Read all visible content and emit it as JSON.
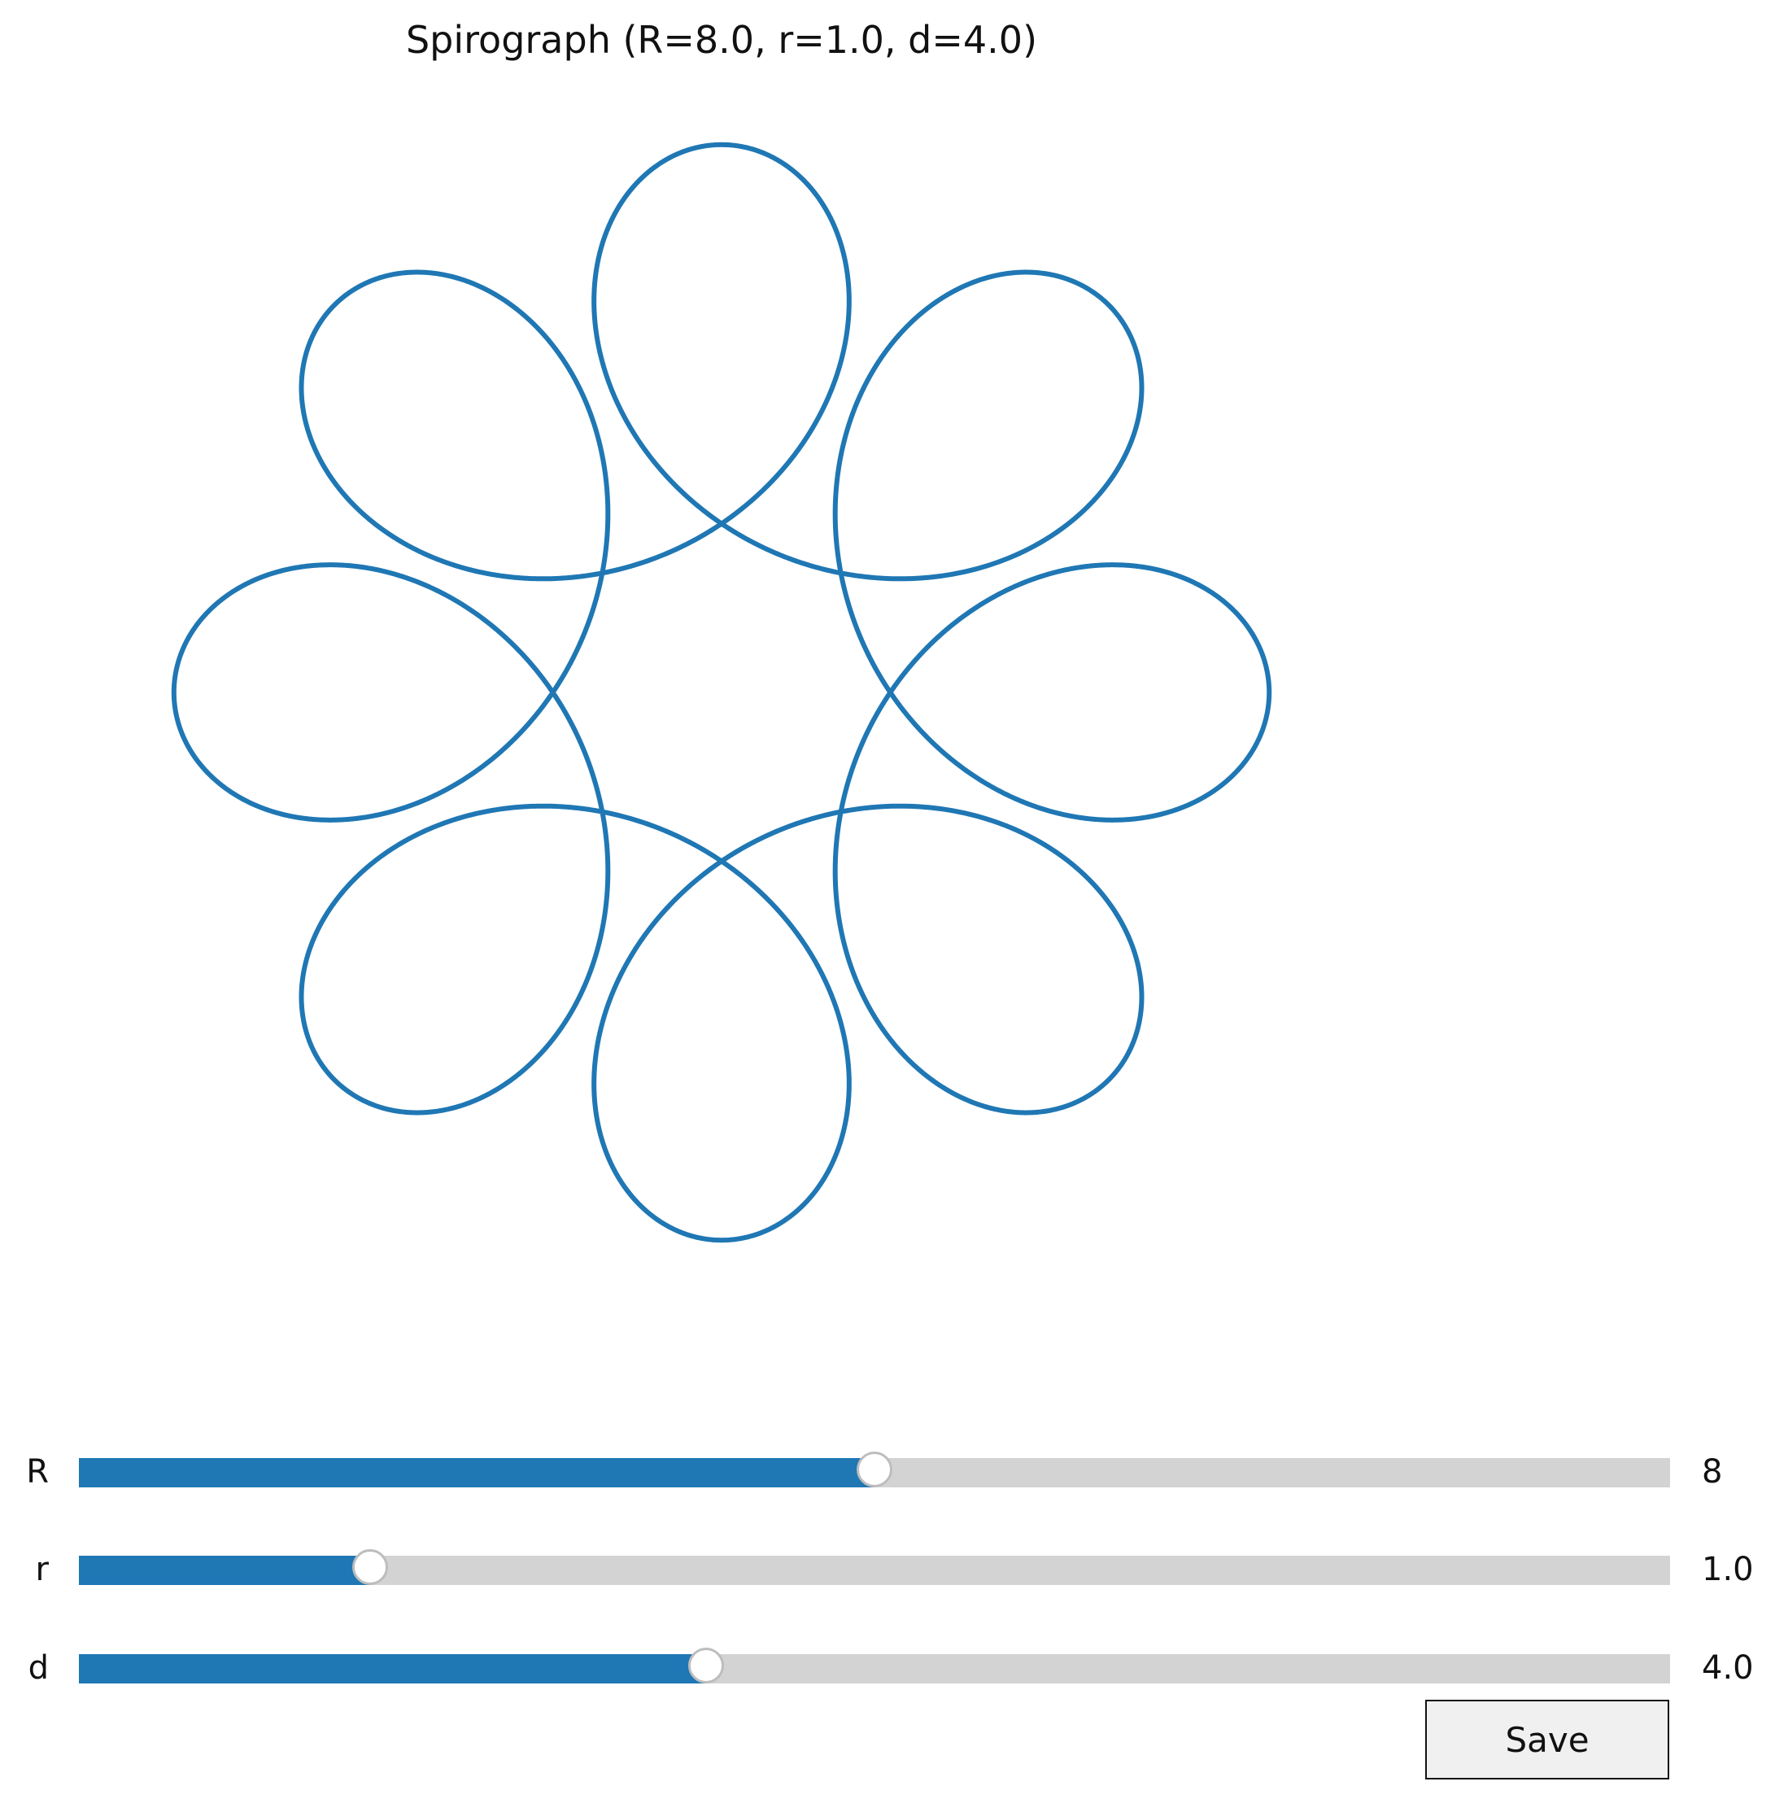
{
  "title": "Spirograph (R=8.0, r=1.0, d=4.0)",
  "chart_data": {
    "type": "line",
    "curve": "hypotrochoid",
    "R": 8.0,
    "r": 1.0,
    "d": 4.0,
    "lobes": 8,
    "x_range": [
      -11,
      11
    ],
    "y_range": [
      -11,
      11
    ],
    "axes_visible": false,
    "grid": false,
    "line_color": "#1f77b4"
  },
  "sliders": [
    {
      "label": "R",
      "value_text": "8",
      "fraction": 0.5
    },
    {
      "label": "r",
      "value_text": "1.0",
      "fraction": 0.183
    },
    {
      "label": "d",
      "value_text": "4.0",
      "fraction": 0.394
    }
  ],
  "save_button": {
    "label": "Save"
  },
  "colors": {
    "accent": "#1f77b4",
    "track": "#d3d3d3",
    "thumb_border": "#bdbdbd"
  }
}
